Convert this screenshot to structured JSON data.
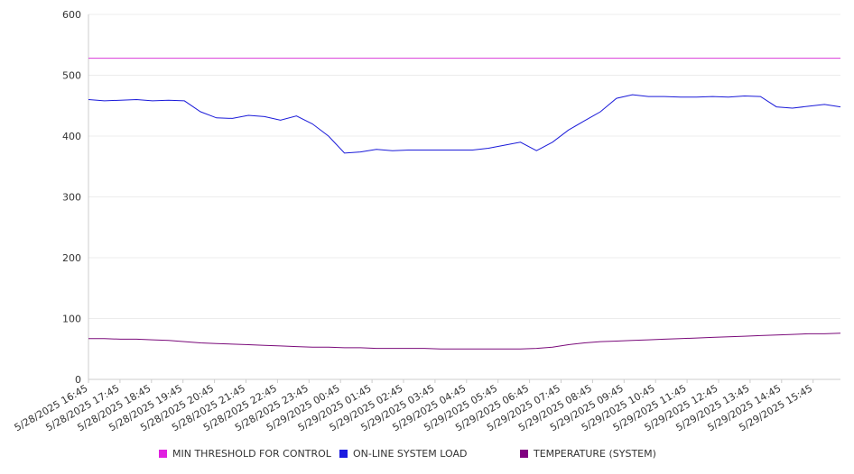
{
  "chart_data": {
    "type": "line",
    "title": "",
    "xlabel": "",
    "ylabel": "",
    "ylim": [
      0,
      600
    ],
    "yticks": [
      0,
      100,
      200,
      300,
      400,
      500,
      600
    ],
    "grid": true,
    "legend_position": "bottom",
    "x_tick_labels": [
      "5/28/2025 16:45",
      "5/28/2025 17:45",
      "5/28/2025 18:45",
      "5/28/2025 19:45",
      "5/28/2025 20:45",
      "5/28/2025 21:45",
      "5/28/2025 22:45",
      "5/28/2025 23:45",
      "5/29/2025 00:45",
      "5/29/2025 01:45",
      "5/29/2025 02:45",
      "5/29/2025 03:45",
      "5/29/2025 04:45",
      "5/29/2025 05:45",
      "5/29/2025 06:45",
      "5/29/2025 07:45",
      "5/29/2025 08:45",
      "5/29/2025 09:45",
      "5/29/2025 10:45",
      "5/29/2025 11:45",
      "5/29/2025 12:45",
      "5/29/2025 13:45",
      "5/29/2025 14:45",
      "5/29/2025 15:45"
    ],
    "x": [
      "5/28/2025 16:45",
      "5/28/2025 17:15",
      "5/28/2025 17:45",
      "5/28/2025 18:15",
      "5/28/2025 18:45",
      "5/28/2025 19:15",
      "5/28/2025 19:45",
      "5/28/2025 20:15",
      "5/28/2025 20:45",
      "5/28/2025 21:15",
      "5/28/2025 21:45",
      "5/28/2025 22:15",
      "5/28/2025 22:45",
      "5/28/2025 23:15",
      "5/28/2025 23:45",
      "5/29/2025 00:15",
      "5/29/2025 00:45",
      "5/29/2025 01:15",
      "5/29/2025 01:45",
      "5/29/2025 02:15",
      "5/29/2025 02:45",
      "5/29/2025 03:15",
      "5/29/2025 03:45",
      "5/29/2025 04:15",
      "5/29/2025 04:45",
      "5/29/2025 05:15",
      "5/29/2025 05:45",
      "5/29/2025 06:15",
      "5/29/2025 06:45",
      "5/29/2025 07:15",
      "5/29/2025 07:45",
      "5/29/2025 08:15",
      "5/29/2025 08:45",
      "5/29/2025 09:15",
      "5/29/2025 09:45",
      "5/29/2025 10:15",
      "5/29/2025 10:45",
      "5/29/2025 11:15",
      "5/29/2025 11:45",
      "5/29/2025 12:15",
      "5/29/2025 12:45",
      "5/29/2025 13:15",
      "5/29/2025 13:45",
      "5/29/2025 14:15",
      "5/29/2025 14:45",
      "5/29/2025 15:15",
      "5/29/2025 15:45",
      "5/29/2025 16:15"
    ],
    "series": [
      {
        "name": "MIN THRESHOLD FOR CONTROL",
        "color": "#d93ad9",
        "values": [
          528,
          528,
          528,
          528,
          528,
          528,
          528,
          528,
          528,
          528,
          528,
          528,
          528,
          528,
          528,
          528,
          528,
          528,
          528,
          528,
          528,
          528,
          528,
          528,
          528,
          528,
          528,
          528,
          528,
          528,
          528,
          528,
          528,
          528,
          528,
          528,
          528,
          528,
          528,
          528,
          528,
          528,
          528,
          528,
          528,
          528,
          528,
          528
        ]
      },
      {
        "name": "ON-LINE SYSTEM LOAD",
        "color": "#1a1ad9",
        "values": [
          460,
          458,
          459,
          460,
          458,
          459,
          458,
          440,
          430,
          429,
          434,
          432,
          426,
          433,
          420,
          400,
          372,
          374,
          378,
          376,
          377,
          377,
          377,
          377,
          377,
          380,
          385,
          390,
          376,
          390,
          410,
          425,
          440,
          462,
          468,
          465,
          465,
          464,
          464,
          465,
          464,
          466,
          465,
          448,
          446,
          449,
          452,
          448
        ]
      },
      {
        "name": "TEMPERATURE (SYSTEM)",
        "color": "#7a0a7a",
        "values": [
          67,
          67,
          66,
          66,
          65,
          64,
          62,
          60,
          59,
          58,
          57,
          56,
          55,
          54,
          53,
          53,
          52,
          52,
          51,
          51,
          51,
          51,
          50,
          50,
          50,
          50,
          50,
          50,
          51,
          53,
          57,
          60,
          62,
          63,
          64,
          65,
          66,
          67,
          68,
          69,
          70,
          71,
          72,
          73,
          74,
          75,
          75,
          76
        ]
      }
    ]
  }
}
